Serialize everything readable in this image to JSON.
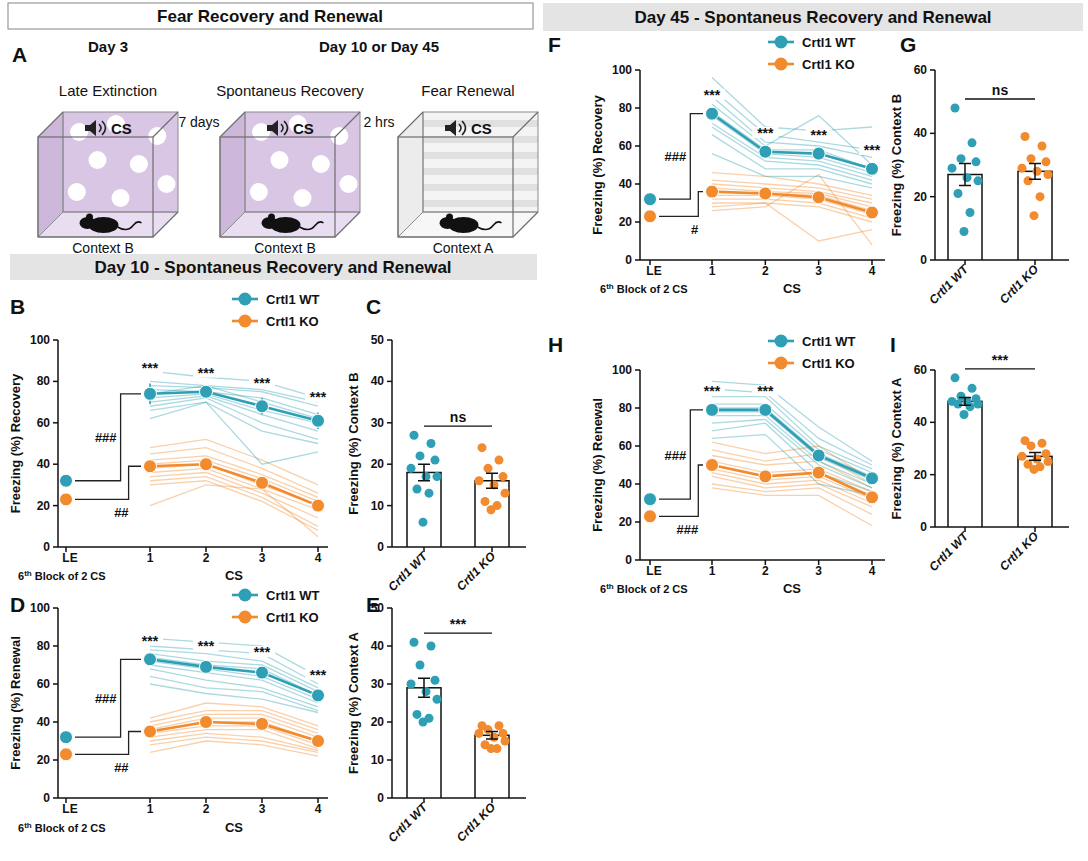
{
  "headers": {
    "overview": "Fear Recovery and Renewal",
    "day10": "Day 10 - Spontaneus Recovery and Renewal",
    "day45": "Day 45 - Spontaneus Recovery and Renewal"
  },
  "diagram": {
    "panel": "A",
    "days": [
      "Day 3",
      "Day 10 or Day 45"
    ],
    "intervals": [
      "7 days",
      "2 hrs"
    ],
    "stages": [
      {
        "label": "Late Extinction",
        "cue": "CS",
        "context": "Context B"
      },
      {
        "label": "Spontaneus Recovery",
        "cue": "CS",
        "context": "Context B"
      },
      {
        "label": "Fear Renewal",
        "cue": "CS",
        "context": "Context A"
      }
    ]
  },
  "chart_data": [
    {
      "panel": "B",
      "type": "line",
      "y_label": "Freezing (%) Recovery",
      "x_label": "CS",
      "x_note": "6th Block of 2 CS",
      "baseline_label": "LE",
      "categories": [
        "1",
        "2",
        "3",
        "4"
      ],
      "ylim": [
        0,
        100
      ],
      "yticks": [
        0,
        20,
        40,
        60,
        80,
        100
      ],
      "legend": "top",
      "significance": [
        "***",
        "***",
        "***",
        "***"
      ],
      "series": [
        {
          "name": "Crtl1 WT",
          "color": "#2e9fb5",
          "baseline": 32,
          "baseline_error": 1,
          "baseline_significance": "###",
          "values": [
            74,
            75,
            68,
            61
          ],
          "errors": [
            5,
            2,
            4,
            4
          ],
          "subjects": [
            [
              85,
              82,
              80,
              72
            ],
            [
              80,
              78,
              76,
              70
            ],
            [
              78,
              77,
              75,
              68
            ],
            [
              76,
              75,
              72,
              64
            ],
            [
              74,
              78,
              70,
              62
            ],
            [
              72,
              74,
              66,
              60
            ],
            [
              70,
              73,
              64,
              56
            ],
            [
              68,
              72,
              60,
              52
            ],
            [
              62,
              70,
              56,
              50
            ],
            [
              66,
              70,
              40,
              46
            ]
          ]
        },
        {
          "name": "Crtl1 KO",
          "color": "#f28a2e",
          "baseline": 23,
          "baseline_error": 2.5,
          "baseline_significance": "##",
          "values": [
            39,
            40,
            31,
            20
          ],
          "errors": [
            3,
            3,
            2,
            3
          ],
          "subjects": [
            [
              48,
              52,
              42,
              30
            ],
            [
              45,
              48,
              38,
              26
            ],
            [
              42,
              44,
              35,
              24
            ],
            [
              40,
              42,
              33,
              22
            ],
            [
              38,
              40,
              30,
              20
            ],
            [
              36,
              38,
              28,
              18
            ],
            [
              34,
              36,
              26,
              14
            ],
            [
              32,
              34,
              24,
              10
            ],
            [
              30,
              32,
              22,
              8
            ],
            [
              20,
              30,
              28,
              5
            ]
          ]
        }
      ]
    },
    {
      "panel": "C",
      "type": "bar",
      "y_label": "Freezing (%) Context B",
      "categories": [
        "Crtl1 WT",
        "Crtl1 KO"
      ],
      "values": [
        18,
        16
      ],
      "errors": [
        2,
        1.8
      ],
      "colors": [
        "#2e9fb5",
        "#f28a2e"
      ],
      "ylim": [
        0,
        50
      ],
      "yticks": [
        0,
        10,
        20,
        30,
        40,
        50
      ],
      "significance": "ns",
      "points": [
        [
          27,
          25,
          22,
          21,
          19,
          17,
          17,
          14,
          13,
          6
        ],
        [
          24,
          21,
          19,
          17,
          16,
          15,
          13,
          11,
          10,
          9
        ]
      ]
    },
    {
      "panel": "D",
      "type": "line",
      "y_label": "Freezing (%) Renewal",
      "x_label": "CS",
      "x_note": "6th Block of 2 CS",
      "baseline_label": "LE",
      "categories": [
        "1",
        "2",
        "3",
        "4"
      ],
      "ylim": [
        0,
        100
      ],
      "yticks": [
        0,
        20,
        40,
        60,
        80,
        100
      ],
      "legend": "top",
      "significance": [
        "***",
        "***",
        "***",
        "***"
      ],
      "series": [
        {
          "name": "Crtl1 WT",
          "color": "#2e9fb5",
          "baseline": 32,
          "baseline_error": 1,
          "baseline_significance": "###",
          "values": [
            73,
            69,
            66,
            54
          ],
          "errors": [
            2,
            3,
            3,
            3
          ],
          "subjects": [
            [
              84,
              82,
              80,
              64
            ],
            [
              80,
              78,
              76,
              60
            ],
            [
              78,
              76,
              72,
              58
            ],
            [
              76,
              72,
              70,
              56
            ],
            [
              74,
              70,
              68,
              54
            ],
            [
              72,
              68,
              64,
              52
            ],
            [
              70,
              66,
              62,
              50
            ],
            [
              68,
              62,
              58,
              48
            ],
            [
              64,
              58,
              56,
              46
            ],
            [
              60,
              55,
              52,
              45
            ]
          ]
        },
        {
          "name": "Crtl1 KO",
          "color": "#f28a2e",
          "baseline": 23,
          "baseline_error": 2.5,
          "baseline_significance": "##",
          "values": [
            35,
            40,
            39,
            30
          ],
          "errors": [
            2,
            2,
            2,
            2
          ],
          "subjects": [
            [
              42,
              50,
              48,
              38
            ],
            [
              40,
              46,
              46,
              36
            ],
            [
              38,
              44,
              44,
              34
            ],
            [
              36,
              42,
              42,
              32
            ],
            [
              35,
              40,
              40,
              30
            ],
            [
              34,
              38,
              38,
              28
            ],
            [
              32,
              36,
              36,
              26
            ],
            [
              30,
              34,
              32,
              25
            ],
            [
              28,
              32,
              30,
              24
            ],
            [
              24,
              30,
              28,
              22
            ]
          ]
        }
      ]
    },
    {
      "panel": "E",
      "type": "bar",
      "y_label": "Freezing (%) Context A",
      "categories": [
        "Crtl1 WT",
        "Crtl1 KO"
      ],
      "values": [
        29,
        16.5
      ],
      "errors": [
        2.5,
        1
      ],
      "colors": [
        "#2e9fb5",
        "#f28a2e"
      ],
      "ylim": [
        0,
        50
      ],
      "yticks": [
        0,
        10,
        20,
        30,
        40,
        50
      ],
      "significance": "***",
      "points": [
        [
          41,
          40,
          35,
          31,
          30,
          28,
          26,
          22,
          21,
          20
        ],
        [
          19,
          19,
          18,
          17,
          17,
          16,
          15,
          14,
          13,
          13
        ]
      ]
    },
    {
      "panel": "F",
      "type": "line",
      "y_label": "Freezing (%) Recovery",
      "x_label": "CS",
      "x_note": "6th Block of 2 CS",
      "baseline_label": "LE",
      "categories": [
        "1",
        "2",
        "3",
        "4"
      ],
      "ylim": [
        0,
        100
      ],
      "yticks": [
        0,
        20,
        40,
        60,
        80,
        100
      ],
      "legend": "top",
      "significance": [
        "***",
        "***",
        "***",
        "***"
      ],
      "series": [
        {
          "name": "Crtl1 WT",
          "color": "#2e9fb5",
          "baseline": 32,
          "baseline_error": 1,
          "baseline_significance": "###",
          "values": [
            77,
            57,
            56,
            48
          ],
          "errors": [
            2,
            2,
            2,
            2
          ],
          "subjects": [
            [
              96,
              70,
              68,
              70
            ],
            [
              90,
              66,
              62,
              58
            ],
            [
              86,
              62,
              60,
              54
            ],
            [
              82,
              60,
              76,
              50
            ],
            [
              78,
              58,
              58,
              48
            ],
            [
              76,
              56,
              54,
              46
            ],
            [
              72,
              54,
              52,
              44
            ],
            [
              70,
              52,
              50,
              42
            ],
            [
              66,
              48,
              48,
              40
            ],
            [
              56,
              44,
              44,
              38
            ]
          ]
        },
        {
          "name": "Crtl1 KO",
          "color": "#f28a2e",
          "baseline": 23,
          "baseline_error": 2.5,
          "baseline_significance": "#",
          "values": [
            36,
            35,
            33,
            25
          ],
          "errors": [
            2,
            2,
            2,
            2
          ],
          "subjects": [
            [
              46,
              44,
              40,
              34
            ],
            [
              42,
              40,
              38,
              32
            ],
            [
              40,
              38,
              36,
              30
            ],
            [
              38,
              36,
              35,
              28
            ],
            [
              36,
              35,
              34,
              26
            ],
            [
              34,
              34,
              32,
              24
            ],
            [
              32,
              32,
              30,
              22
            ],
            [
              30,
              30,
              28,
              20
            ],
            [
              28,
              30,
              10,
              16
            ],
            [
              26,
              28,
              45,
              8
            ]
          ]
        }
      ]
    },
    {
      "panel": "G",
      "type": "bar",
      "y_label": "Freezing (%) Context B",
      "categories": [
        "Crtl1 WT",
        "Crtl1 KO"
      ],
      "values": [
        27,
        28
      ],
      "errors": [
        3.5,
        2.5
      ],
      "colors": [
        "#2e9fb5",
        "#f28a2e"
      ],
      "ylim": [
        0,
        60
      ],
      "yticks": [
        0,
        20,
        40,
        60
      ],
      "significance": "ns",
      "points": [
        [
          48,
          37,
          32,
          31,
          29,
          26,
          25,
          21,
          15,
          9
        ],
        [
          39,
          36,
          32,
          31,
          29,
          28,
          27,
          25,
          20,
          14
        ]
      ]
    },
    {
      "panel": "H",
      "type": "line",
      "y_label": "Freezing (%) Renewal",
      "x_label": "CS",
      "x_note": "6th Block of 2 CS",
      "baseline_label": "LE",
      "categories": [
        "1",
        "2",
        "3",
        "4"
      ],
      "ylim": [
        0,
        100
      ],
      "yticks": [
        0,
        20,
        40,
        60,
        80,
        100
      ],
      "legend": "top",
      "significance": [
        "***",
        "***",
        null,
        null
      ],
      "series": [
        {
          "name": "Crtl1 WT",
          "color": "#2e9fb5",
          "baseline": 32,
          "baseline_error": 1,
          "baseline_significance": "###",
          "values": [
            79,
            79,
            55,
            43
          ],
          "errors": [
            2,
            2,
            2,
            2
          ],
          "subjects": [
            [
              94,
              92,
              70,
              52
            ],
            [
              90,
              88,
              64,
              50
            ],
            [
              86,
              86,
              60,
              48
            ],
            [
              82,
              82,
              58,
              46
            ],
            [
              80,
              80,
              56,
              44
            ],
            [
              78,
              78,
              54,
              42
            ],
            [
              76,
              76,
              52,
              40
            ],
            [
              72,
              74,
              50,
              38
            ],
            [
              68,
              72,
              46,
              36
            ],
            [
              64,
              66,
              40,
              34
            ]
          ]
        },
        {
          "name": "Crtl1 KO",
          "color": "#f28a2e",
          "baseline": 23,
          "baseline_error": 2.5,
          "baseline_significance": "###",
          "values": [
            50,
            44,
            46,
            33
          ],
          "errors": [
            2,
            2,
            2,
            2
          ],
          "subjects": [
            [
              62,
              56,
              60,
              42
            ],
            [
              58,
              52,
              56,
              40
            ],
            [
              55,
              50,
              52,
              38
            ],
            [
              52,
              46,
              48,
              36
            ],
            [
              50,
              44,
              46,
              34
            ],
            [
              48,
              42,
              44,
              32
            ],
            [
              46,
              40,
              42,
              30
            ],
            [
              44,
              38,
              40,
              28
            ],
            [
              40,
              36,
              38,
              24
            ],
            [
              38,
              34,
              34,
              18
            ]
          ]
        }
      ]
    },
    {
      "panel": "I",
      "type": "bar",
      "y_label": "Freezing (%) Context A",
      "categories": [
        "Crtl1 WT",
        "Crtl1 KO"
      ],
      "values": [
        48,
        27
      ],
      "errors": [
        1.5,
        1.5
      ],
      "colors": [
        "#2e9fb5",
        "#f28a2e"
      ],
      "ylim": [
        0,
        60
      ],
      "yticks": [
        0,
        20,
        40,
        60
      ],
      "significance": "***",
      "points": [
        [
          57,
          53,
          50,
          49,
          48,
          48,
          47,
          47,
          46,
          43
        ],
        [
          33,
          32,
          31,
          28,
          27,
          26,
          25,
          24,
          23,
          22
        ]
      ]
    }
  ]
}
